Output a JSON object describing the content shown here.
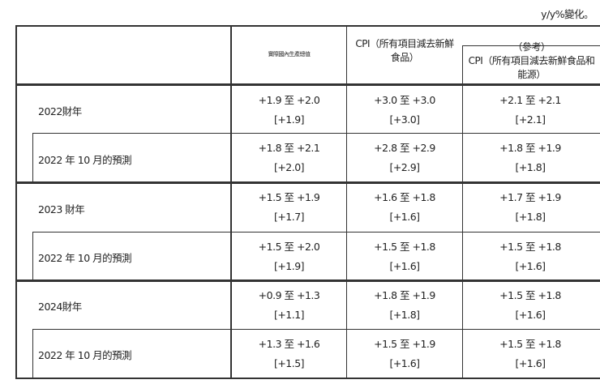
{
  "unit_note": "y/y%變化。",
  "headers": [
    "實際國內生產總值",
    "CPI（所有項目減去新鮮食品）",
    "（參考）\nCPI（所有項目減去新鮮食品和能源）"
  ],
  "rows": [
    {
      "label": "2022財年",
      "cells": [
        [
          "+1.9 至 +2.0",
          "[+1.9]"
        ],
        [
          "+3.0 至 +3.0",
          "[+3.0]"
        ],
        [
          "+2.1 至 +2.1",
          "[+2.1]"
        ]
      ]
    },
    {
      "label": "2022 年 10 月的預測",
      "cells": [
        [
          "+1.8 至 +2.1",
          "[+2.0]"
        ],
        [
          "+2.8 至 +2.9",
          "[+2.9]"
        ],
        [
          "+1.8 至 +1.9",
          "[+1.8]"
        ]
      ]
    },
    {
      "label": "2023 財年",
      "cells": [
        [
          "+1.5 至 +1.9",
          "[+1.7]"
        ],
        [
          "+1.6 至 +1.8",
          "[+1.6]"
        ],
        [
          "+1.7 至 +1.9",
          "[+1.8]"
        ]
      ]
    },
    {
      "label": "2022 年 10 月的預測",
      "cells": [
        [
          "+1.5 至 +2.0",
          "[+1.9]"
        ],
        [
          "+1.5 至 +1.8",
          "[+1.6]"
        ],
        [
          "+1.5 至 +1.8",
          "[+1.6]"
        ]
      ]
    },
    {
      "label": "2024財年",
      "cells": [
        [
          "+0.9 至 +1.3",
          "[+1.1]"
        ],
        [
          "+1.8 至 +1.9",
          "[+1.8]"
        ],
        [
          "+1.5 至 +1.8",
          "[+1.6]"
        ]
      ]
    },
    {
      "label": "2022 年 10 月的預測",
      "cells": [
        [
          "+1.3 至 +1.6",
          "[+1.5]"
        ],
        [
          "+1.5 至 +1.9",
          "[+1.6]"
        ],
        [
          "+1.5 至 +1.8",
          "[+1.6]"
        ]
      ]
    }
  ]
}
